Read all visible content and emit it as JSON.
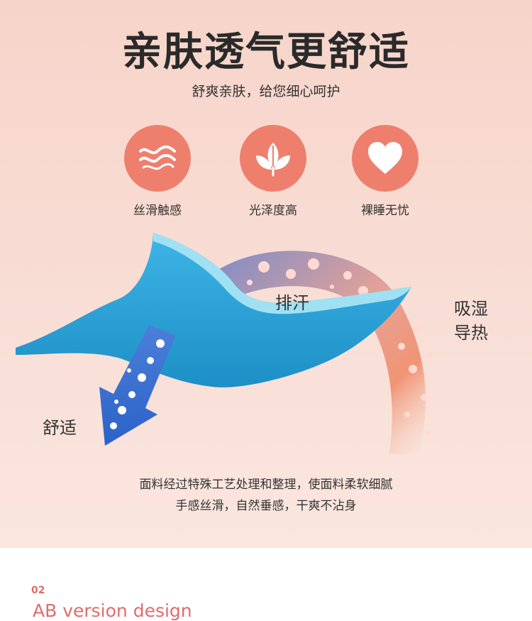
{
  "title": "亲肤透气更舒适",
  "subtitle": "舒爽亲肤，给您细心呵护",
  "features": [
    {
      "label": "丝滑触感",
      "icon": "wave-icon"
    },
    {
      "label": "光泽度高",
      "icon": "leaf-icon"
    },
    {
      "label": "裸睡无忧",
      "icon": "heart-icon"
    }
  ],
  "diagram": {
    "sweat_label": "排汗",
    "moisture_label": [
      "吸湿",
      "导热"
    ],
    "comfort_label": "舒适"
  },
  "description": [
    "面料经过特殊工艺处理和整理，使面料柔软细腻",
    "手感丝滑，自然垂感，干爽不沾身"
  ],
  "section": {
    "number": "02",
    "title": "AB version design"
  },
  "colors": {
    "accent": "#ef7f6d",
    "fabric": "#2aa1d6",
    "section_text": "#e06c6c"
  }
}
